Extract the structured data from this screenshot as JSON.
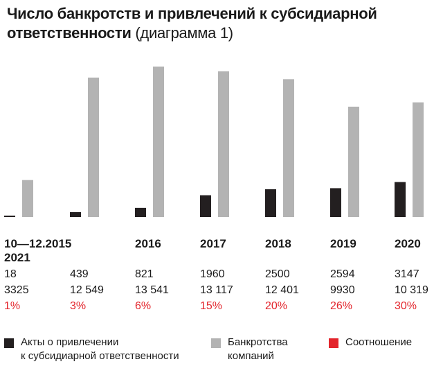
{
  "title": {
    "line1": "Число банкротств и привлечений к субсидиарной",
    "line2": "ответственности",
    "sub": " (диаграмма 1)"
  },
  "colors": {
    "acts": "#231f20",
    "bankruptcies": "#b3b3b3",
    "ratio": "#e3242b"
  },
  "chart_data": {
    "type": "bar",
    "title": "Число банкротств и привлечений к субсидиарной ответственности (диаграмма 1)",
    "categories": [
      "10—12.2015",
      "2016",
      "2017",
      "2018",
      "2019",
      "2020",
      "2021"
    ],
    "series": [
      {
        "name": "Акты о привлечении к субсидиарной ответственности",
        "labels": [
          "18",
          "439",
          "821",
          "1960",
          "2500",
          "2594",
          "3147"
        ],
        "values": [
          18,
          439,
          821,
          1960,
          2500,
          2594,
          3147
        ]
      },
      {
        "name": "Банкротства компаний",
        "labels": [
          "3325",
          "12 549",
          "13 541",
          "13 117",
          "12 401",
          "9930",
          "10 319"
        ],
        "values": [
          3325,
          12549,
          13541,
          13117,
          12401,
          9930,
          10319
        ]
      },
      {
        "name": "Соотношение",
        "labels": [
          "1%",
          "3%",
          "6%",
          "15%",
          "20%",
          "26%",
          "30%"
        ],
        "values": [
          1,
          3,
          6,
          15,
          20,
          26,
          30
        ]
      }
    ],
    "ylim": [
      0,
      13541
    ],
    "grid": false,
    "legend": "bottom"
  },
  "legend": [
    {
      "lines": [
        "Акты о привлечении",
        "к субсидиарной ответственности"
      ]
    },
    {
      "lines": [
        "Банкротства",
        "компаний"
      ]
    },
    {
      "lines": [
        "Соотношение"
      ]
    }
  ]
}
